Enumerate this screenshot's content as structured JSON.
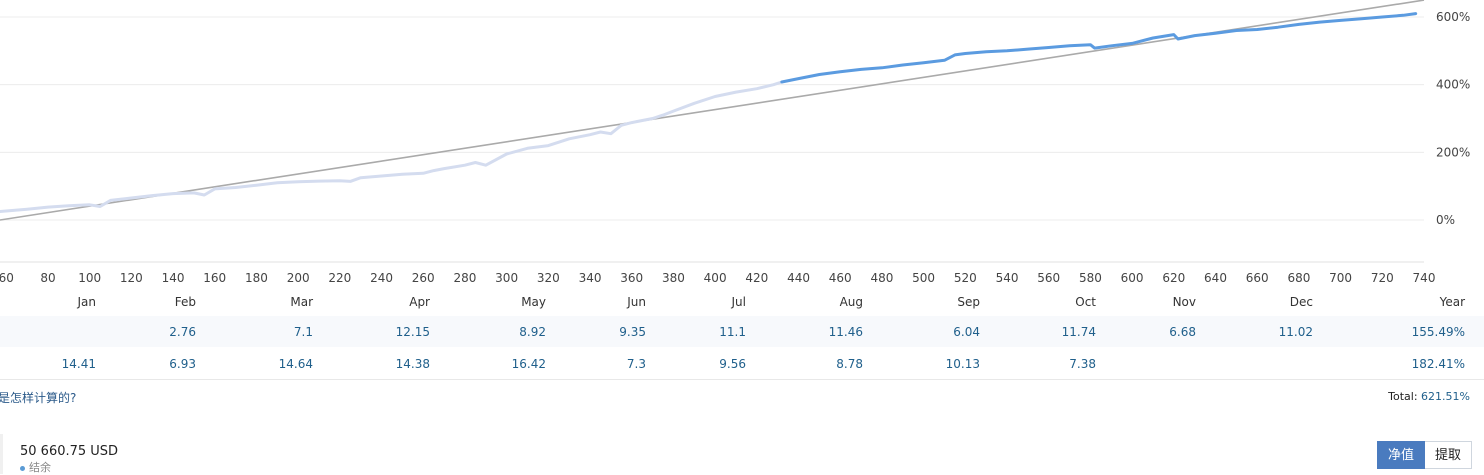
{
  "chart_data": {
    "type": "line",
    "x_ticks": [
      60,
      80,
      100,
      120,
      140,
      160,
      180,
      200,
      220,
      240,
      260,
      280,
      300,
      320,
      340,
      360,
      380,
      400,
      420,
      440,
      460,
      480,
      500,
      520,
      540,
      560,
      580,
      600,
      620,
      640,
      660,
      680,
      700,
      720,
      740
    ],
    "x_tick_labels": [
      "60",
      "80",
      "100",
      "120",
      "140",
      "160",
      "180",
      "200",
      "220",
      "240",
      "260",
      "280",
      "300",
      "320",
      "340",
      "360",
      "380",
      "400",
      "420",
      "440",
      "460",
      "480",
      "500",
      "520",
      "540",
      "560",
      "580",
      "600",
      "620",
      "640",
      "660",
      "680",
      "700",
      "720",
      "740"
    ],
    "y_ticks": [
      0,
      200,
      400,
      600
    ],
    "y_tick_labels": [
      "0%",
      "200%",
      "400%",
      "600%"
    ],
    "xlim": [
      57,
      740
    ],
    "ylim": [
      -120,
      650
    ],
    "grid": "horizontal",
    "colors": {
      "faded": "#d4dcef",
      "main": "#5b9be0",
      "trend": "#aaaaaa"
    },
    "trend_line": {
      "x": [
        57,
        740
      ],
      "y": [
        0,
        650
      ]
    },
    "series": [
      {
        "style": "faded",
        "x": [
          57,
          70,
          80,
          90,
          100,
          105,
          110,
          120,
          130,
          140,
          150,
          155,
          160,
          170,
          180,
          190,
          200,
          210,
          220,
          225,
          230,
          240,
          250,
          260,
          265,
          270,
          280,
          285,
          290,
          300,
          310,
          320,
          330,
          340,
          345,
          350,
          355,
          360,
          370,
          375,
          380,
          390,
          400,
          410,
          420,
          428,
          432
        ],
        "y": [
          25,
          32,
          38,
          42,
          45,
          40,
          58,
          65,
          72,
          78,
          80,
          74,
          92,
          96,
          103,
          110,
          113,
          115,
          116,
          114,
          125,
          130,
          135,
          138,
          146,
          152,
          162,
          170,
          162,
          195,
          212,
          220,
          240,
          252,
          260,
          255,
          280,
          288,
          300,
          310,
          322,
          345,
          365,
          378,
          388,
          400,
          408
        ]
      },
      {
        "style": "main",
        "x": [
          432,
          440,
          450,
          460,
          470,
          480,
          490,
          500,
          510,
          515,
          520,
          530,
          540,
          550,
          560,
          570,
          580,
          582,
          590,
          600,
          610,
          620,
          622,
          630,
          640,
          650,
          660,
          670,
          680,
          690,
          700,
          710,
          720,
          730,
          736
        ],
        "y": [
          408,
          418,
          430,
          438,
          445,
          450,
          458,
          465,
          472,
          488,
          492,
          497,
          500,
          505,
          510,
          515,
          518,
          508,
          515,
          522,
          538,
          548,
          535,
          545,
          552,
          560,
          563,
          570,
          578,
          585,
          590,
          595,
          600,
          605,
          610
        ]
      }
    ]
  },
  "months": [
    "Jan",
    "Feb",
    "Mar",
    "Apr",
    "May",
    "Jun",
    "Jul",
    "Aug",
    "Sep",
    "Oct",
    "Nov",
    "Dec",
    "Year"
  ],
  "row1": [
    "",
    "2.76",
    "7.1",
    "12.15",
    "8.92",
    "9.35",
    "11.1",
    "11.46",
    "6.04",
    "11.74",
    "6.68",
    "11.02",
    "155.49%"
  ],
  "row2": [
    "14.41",
    "6.93",
    "14.64",
    "14.38",
    "16.42",
    "7.3",
    "9.56",
    "8.78",
    "10.13",
    "7.38",
    "",
    "",
    "182.41%"
  ],
  "footer": {
    "link": "是怎样计算的?",
    "total_label": "Total:",
    "total_value": "621.51%"
  },
  "balance": {
    "value": "50 660.75 USD",
    "label": "结余"
  },
  "buttons": {
    "equity": "净值",
    "withdraw": "提取"
  }
}
